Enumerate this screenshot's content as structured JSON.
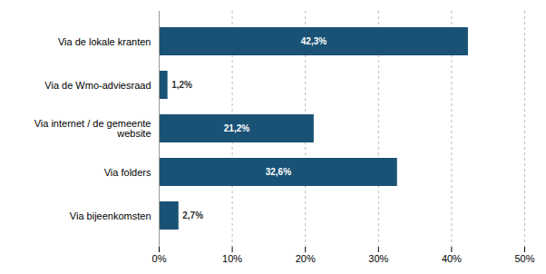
{
  "chart_data": {
    "type": "bar",
    "orientation": "horizontal",
    "categories": [
      "Via de lokale kranten",
      "Via de Wmo-adviesraad",
      "Via internet / de gemeente\nwebsite",
      "Via folders",
      "Via bijeenkomsten"
    ],
    "values": [
      42.3,
      1.2,
      21.2,
      32.6,
      2.7
    ],
    "value_labels": [
      "42,3%",
      "1,2%",
      "21,2%",
      "32,6%",
      "2,7%"
    ],
    "data_labels": true,
    "color": "#1a5276",
    "xlim": [
      0,
      50
    ],
    "xticks": [
      {
        "value": 0,
        "label": "0%"
      },
      {
        "value": 10,
        "label": "10%"
      },
      {
        "value": 20,
        "label": "20%"
      },
      {
        "value": 30,
        "label": "30%"
      },
      {
        "value": 40,
        "label": "40%"
      },
      {
        "value": 50,
        "label": "50%"
      }
    ],
    "grid": true
  }
}
